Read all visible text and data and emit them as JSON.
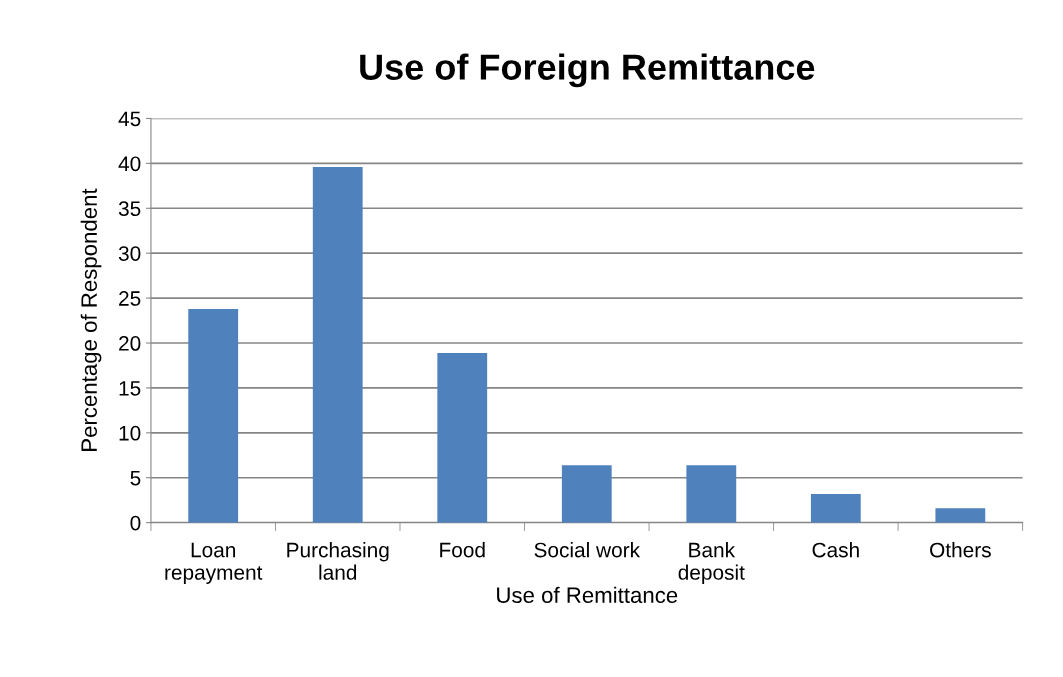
{
  "chart_data": {
    "type": "bar",
    "title": "Use of Foreign Remittance",
    "xlabel": "Use of Remittance",
    "ylabel": "Percentage of Respondent",
    "categories": [
      "Loan\nrepayment",
      "Purchasing\nland",
      "Food",
      "Social work",
      "Bank\ndeposit",
      "Cash",
      "Others"
    ],
    "values": [
      23.8,
      39.6,
      18.9,
      6.4,
      6.4,
      3.2,
      1.6
    ],
    "color": "#4f81bd",
    "ylim": [
      0,
      45
    ],
    "yticks": [
      0,
      5,
      10,
      15,
      20,
      25,
      30,
      35,
      40,
      45
    ],
    "grid": "y"
  }
}
